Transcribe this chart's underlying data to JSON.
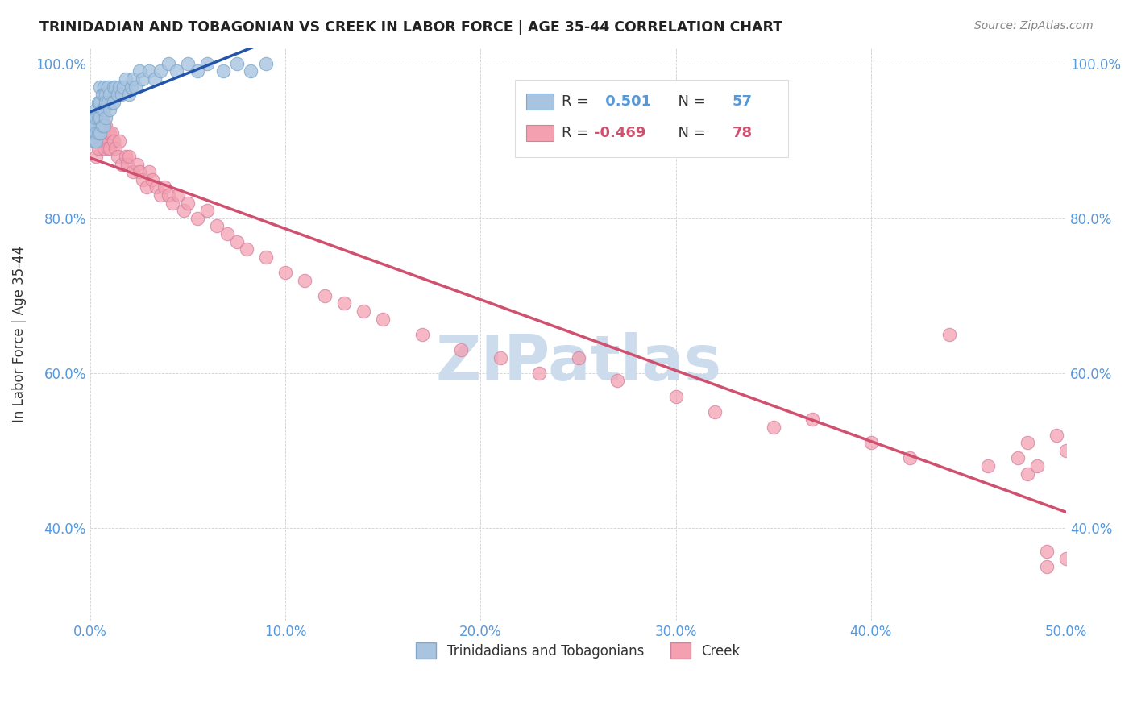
{
  "title": "TRINIDADIAN AND TOBAGONIAN VS CREEK IN LABOR FORCE | AGE 35-44 CORRELATION CHART",
  "source_text": "Source: ZipAtlas.com",
  "ylabel": "In Labor Force | Age 35-44",
  "xlim": [
    0.0,
    0.5
  ],
  "ylim": [
    0.28,
    1.02
  ],
  "xticks": [
    0.0,
    0.1,
    0.2,
    0.3,
    0.4,
    0.5
  ],
  "yticks": [
    0.4,
    0.6,
    0.8,
    1.0
  ],
  "xticklabels": [
    "0.0%",
    "10.0%",
    "20.0%",
    "30.0%",
    "40.0%",
    "50.0%"
  ],
  "yticklabels": [
    "40.0%",
    "60.0%",
    "80.0%",
    "100.0%"
  ],
  "legend_labels": [
    "Trinidadians and Tobagonians",
    "Creek"
  ],
  "r_blue": 0.501,
  "n_blue": 57,
  "r_pink": -0.469,
  "n_pink": 78,
  "blue_color": "#a8c4e0",
  "pink_color": "#f4a0b0",
  "blue_line_color": "#2255aa",
  "pink_line_color": "#d05070",
  "tick_color": "#5599dd",
  "watermark_color": "#ccdcec",
  "background_color": "#ffffff",
  "blue_scatter_x": [
    0.001,
    0.001,
    0.002,
    0.002,
    0.002,
    0.003,
    0.003,
    0.003,
    0.003,
    0.004,
    0.004,
    0.004,
    0.005,
    0.005,
    0.005,
    0.005,
    0.006,
    0.006,
    0.006,
    0.007,
    0.007,
    0.007,
    0.007,
    0.008,
    0.008,
    0.008,
    0.009,
    0.009,
    0.01,
    0.01,
    0.011,
    0.012,
    0.012,
    0.013,
    0.014,
    0.015,
    0.016,
    0.017,
    0.018,
    0.02,
    0.021,
    0.022,
    0.023,
    0.025,
    0.027,
    0.03,
    0.033,
    0.036,
    0.04,
    0.044,
    0.05,
    0.055,
    0.06,
    0.068,
    0.075,
    0.082,
    0.09
  ],
  "blue_scatter_y": [
    0.92,
    0.91,
    0.93,
    0.92,
    0.9,
    0.94,
    0.93,
    0.91,
    0.9,
    0.95,
    0.93,
    0.91,
    0.97,
    0.95,
    0.93,
    0.91,
    0.96,
    0.94,
    0.92,
    0.97,
    0.96,
    0.94,
    0.92,
    0.96,
    0.95,
    0.93,
    0.97,
    0.95,
    0.96,
    0.94,
    0.95,
    0.97,
    0.95,
    0.97,
    0.96,
    0.97,
    0.96,
    0.97,
    0.98,
    0.96,
    0.97,
    0.98,
    0.97,
    0.99,
    0.98,
    0.99,
    0.98,
    0.99,
    1.0,
    0.99,
    1.0,
    0.99,
    1.0,
    0.99,
    1.0,
    0.99,
    1.0
  ],
  "pink_scatter_x": [
    0.001,
    0.002,
    0.003,
    0.003,
    0.004,
    0.004,
    0.005,
    0.005,
    0.006,
    0.006,
    0.007,
    0.007,
    0.008,
    0.008,
    0.009,
    0.009,
    0.01,
    0.01,
    0.011,
    0.012,
    0.013,
    0.014,
    0.015,
    0.016,
    0.018,
    0.019,
    0.02,
    0.022,
    0.024,
    0.025,
    0.027,
    0.029,
    0.03,
    0.032,
    0.034,
    0.036,
    0.038,
    0.04,
    0.042,
    0.045,
    0.048,
    0.05,
    0.055,
    0.06,
    0.065,
    0.07,
    0.075,
    0.08,
    0.09,
    0.1,
    0.11,
    0.12,
    0.13,
    0.14,
    0.15,
    0.17,
    0.19,
    0.21,
    0.23,
    0.25,
    0.27,
    0.3,
    0.32,
    0.35,
    0.37,
    0.4,
    0.42,
    0.44,
    0.46,
    0.48,
    0.49,
    0.5,
    0.5,
    0.495,
    0.49,
    0.485,
    0.48,
    0.475
  ],
  "pink_scatter_y": [
    0.91,
    0.92,
    0.9,
    0.88,
    0.91,
    0.89,
    0.92,
    0.9,
    0.93,
    0.91,
    0.91,
    0.89,
    0.92,
    0.9,
    0.91,
    0.89,
    0.91,
    0.89,
    0.91,
    0.9,
    0.89,
    0.88,
    0.9,
    0.87,
    0.88,
    0.87,
    0.88,
    0.86,
    0.87,
    0.86,
    0.85,
    0.84,
    0.86,
    0.85,
    0.84,
    0.83,
    0.84,
    0.83,
    0.82,
    0.83,
    0.81,
    0.82,
    0.8,
    0.81,
    0.79,
    0.78,
    0.77,
    0.76,
    0.75,
    0.73,
    0.72,
    0.7,
    0.69,
    0.68,
    0.67,
    0.65,
    0.63,
    0.62,
    0.6,
    0.62,
    0.59,
    0.57,
    0.55,
    0.53,
    0.54,
    0.51,
    0.49,
    0.65,
    0.48,
    0.47,
    0.35,
    0.5,
    0.36,
    0.52,
    0.37,
    0.48,
    0.51,
    0.49
  ]
}
